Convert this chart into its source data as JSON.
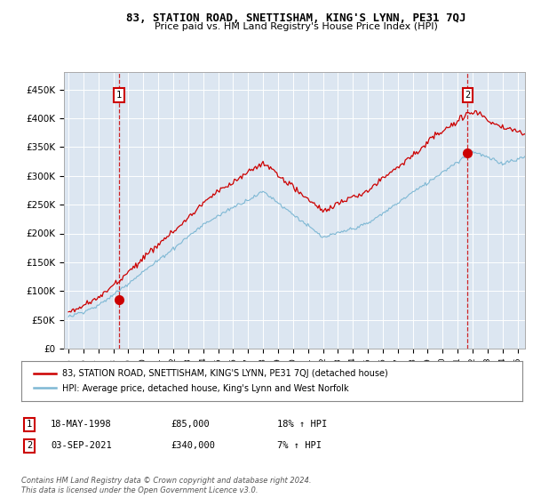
{
  "title_line1": "83, STATION ROAD, SNETTISHAM, KING'S LYNN, PE31 7QJ",
  "title_line2": "Price paid vs. HM Land Registry's House Price Index (HPI)",
  "plot_bg_color": "#dce6f1",
  "red_line_label": "83, STATION ROAD, SNETTISHAM, KING'S LYNN, PE31 7QJ (detached house)",
  "blue_line_label": "HPI: Average price, detached house, King's Lynn and West Norfolk",
  "annotation1": {
    "num": "1",
    "date": "18-MAY-1998",
    "price": "£85,000",
    "hpi": "18% ↑ HPI"
  },
  "annotation2": {
    "num": "2",
    "date": "03-SEP-2021",
    "price": "£340,000",
    "hpi": "7% ↑ HPI"
  },
  "footer": "Contains HM Land Registry data © Crown copyright and database right 2024.\nThis data is licensed under the Open Government Licence v3.0.",
  "yticks": [
    0,
    50000,
    100000,
    150000,
    200000,
    250000,
    300000,
    350000,
    400000,
    450000
  ],
  "ytick_labels": [
    "£0",
    "£50K",
    "£100K",
    "£150K",
    "£200K",
    "£250K",
    "£300K",
    "£350K",
    "£400K",
    "£450K"
  ],
  "xlim_start": 1994.7,
  "xlim_end": 2025.5,
  "ylim_min": 0,
  "ylim_max": 480000,
  "marker1_x": 1998.37,
  "marker1_y": 85000,
  "marker2_x": 2021.67,
  "marker2_y": 340000,
  "dashed1_x": 1998.37,
  "dashed2_x": 2021.67,
  "red_color": "#cc0000",
  "blue_color": "#7eb8d4",
  "grid_color": "white",
  "box_color": "#cc0000"
}
